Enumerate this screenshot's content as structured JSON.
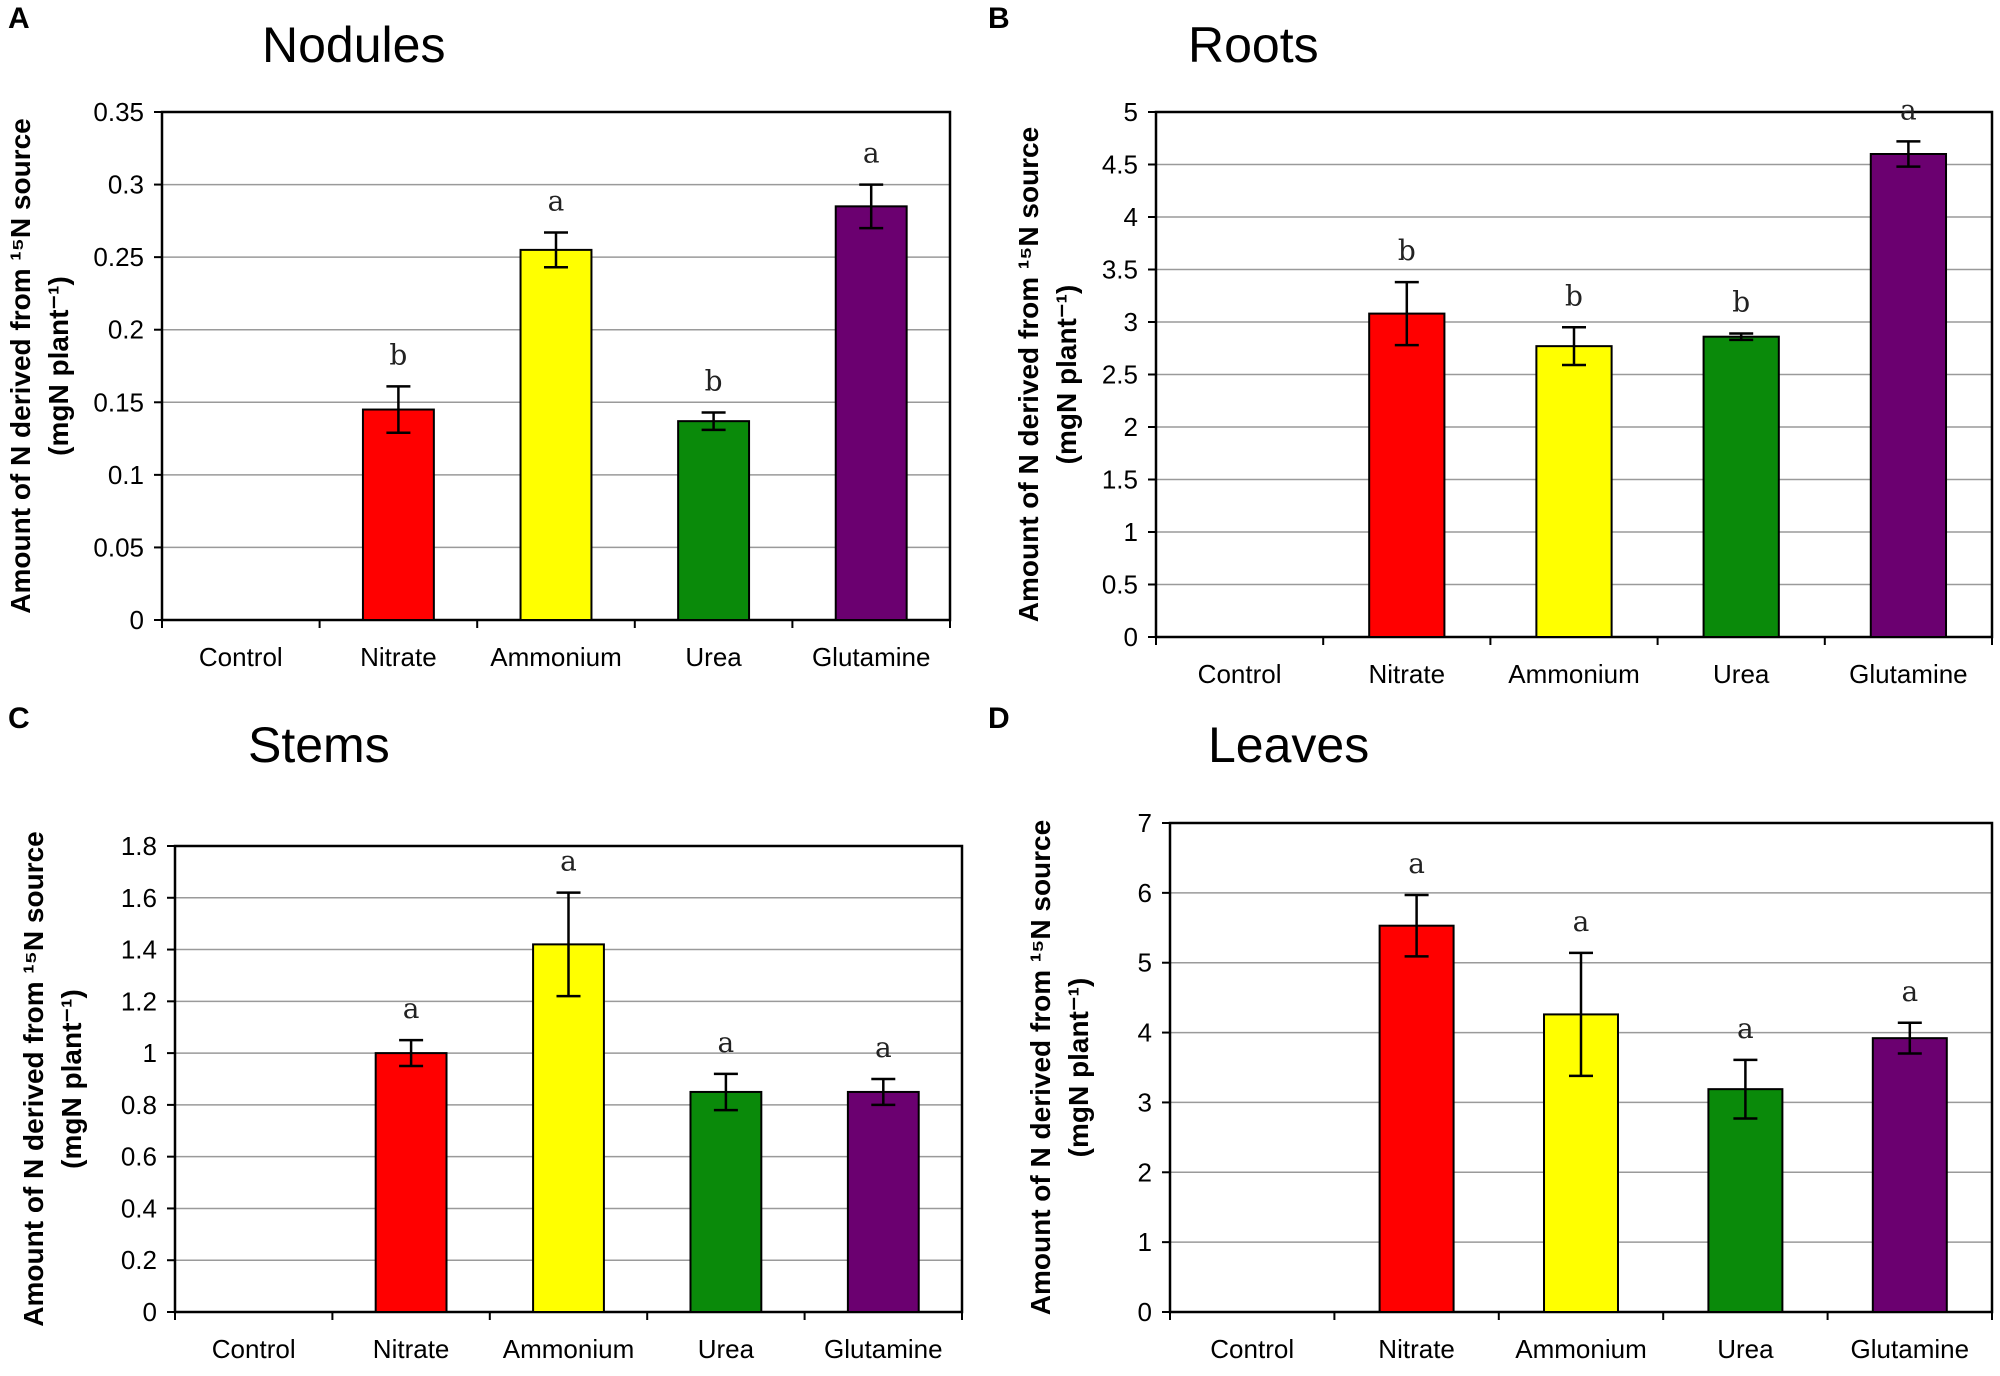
{
  "colors": {
    "Nitrate": "#ff0000",
    "Ammonium": "#ffff00",
    "Urea": "#0a8a0a",
    "Glutamine": "#6b0070"
  },
  "chart_data": [
    {
      "type": "bar",
      "panel": "A",
      "title": "Nodules",
      "ylabel_line1": "Amount of N derived from ¹⁵N source",
      "ylabel_line2": "(mgN plant⁻¹)",
      "categories": [
        "Control",
        "Nitrate",
        "Ammonium",
        "Urea",
        "Glutamine"
      ],
      "values": [
        0,
        0.145,
        0.255,
        0.137,
        0.285
      ],
      "errors": [
        0,
        0.016,
        0.012,
        0.006,
        0.015
      ],
      "significance": [
        "",
        "b",
        "a",
        "b",
        "a"
      ],
      "ylim": [
        0,
        0.35
      ],
      "yticks": [
        0,
        0.05,
        0.1,
        0.15,
        0.2,
        0.25,
        0.3,
        0.35
      ],
      "ytick_labels": [
        "0",
        "0.05",
        "0.1",
        "0.15",
        "0.2",
        "0.25",
        "0.3",
        "0.35"
      ]
    },
    {
      "type": "bar",
      "panel": "B",
      "title": "Roots",
      "ylabel_line1": "Amount of N derived from ¹⁵N source",
      "ylabel_line2": "(mgN plant⁻¹)",
      "categories": [
        "Control",
        "Nitrate",
        "Ammonium",
        "Urea",
        "Glutamine"
      ],
      "values": [
        0,
        3.08,
        2.77,
        2.86,
        4.6
      ],
      "errors": [
        0,
        0.3,
        0.18,
        0.03,
        0.12
      ],
      "significance": [
        "",
        "b",
        "b",
        "b",
        "a"
      ],
      "ylim": [
        0,
        5
      ],
      "yticks": [
        0,
        0.5,
        1,
        1.5,
        2,
        2.5,
        3,
        3.5,
        4,
        4.5,
        5
      ],
      "ytick_labels": [
        "0",
        "0.5",
        "1",
        "1.5",
        "2",
        "2.5",
        "3",
        "3.5",
        "4",
        "4.5",
        "5"
      ]
    },
    {
      "type": "bar",
      "panel": "C",
      "title": "Stems",
      "ylabel_line1": "Amount of N derived from ¹⁵N source",
      "ylabel_line2": "(mgN plant⁻¹)",
      "categories": [
        "Control",
        "Nitrate",
        "Ammonium",
        "Urea",
        "Glutamine"
      ],
      "values": [
        0,
        1.0,
        1.42,
        0.85,
        0.85
      ],
      "errors": [
        0,
        0.05,
        0.2,
        0.07,
        0.05
      ],
      "significance": [
        "",
        "a",
        "a",
        "a",
        "a"
      ],
      "ylim": [
        0,
        1.8
      ],
      "yticks": [
        0,
        0.2,
        0.4,
        0.6,
        0.8,
        1,
        1.2,
        1.4,
        1.6,
        1.8
      ],
      "ytick_labels": [
        "0",
        "0.2",
        "0.4",
        "0.6",
        "0.8",
        "1",
        "1.2",
        "1.4",
        "1.6",
        "1.8"
      ]
    },
    {
      "type": "bar",
      "panel": "D",
      "title": "Leaves",
      "ylabel_line1": "Amount of N derived from ¹⁵N source",
      "ylabel_line2": "(mgN plant⁻¹)",
      "categories": [
        "Control",
        "Nitrate",
        "Ammonium",
        "Urea",
        "Glutamine"
      ],
      "values": [
        0,
        5.53,
        4.26,
        3.19,
        3.92
      ],
      "errors": [
        0,
        0.44,
        0.88,
        0.42,
        0.22
      ],
      "significance": [
        "",
        "a",
        "a",
        "a",
        "a"
      ],
      "ylim": [
        0,
        7
      ],
      "yticks": [
        0,
        1,
        2,
        3,
        4,
        5,
        6,
        7
      ],
      "ytick_labels": [
        "0",
        "1",
        "2",
        "3",
        "4",
        "5",
        "6",
        "7"
      ]
    }
  ]
}
